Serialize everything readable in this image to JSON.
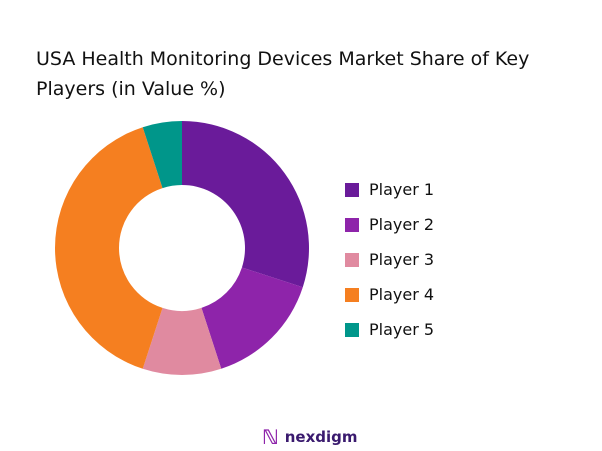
{
  "title": "USA Health Monitoring Devices Market Share of Key Players (in Value %)",
  "chart_data": {
    "type": "pie",
    "donut": true,
    "title": "USA Health Monitoring Devices Market Share of Key Players (in Value %)",
    "categories": [
      "Player 1",
      "Player 2",
      "Player 3",
      "Player 4",
      "Player 5"
    ],
    "values": [
      30,
      15,
      10,
      40,
      5
    ],
    "colors": [
      "#6a1b9a",
      "#8e24aa",
      "#e08aa0",
      "#f57f20",
      "#00968a"
    ],
    "legend_position": "right"
  },
  "brand": {
    "name": "nexdigm"
  }
}
